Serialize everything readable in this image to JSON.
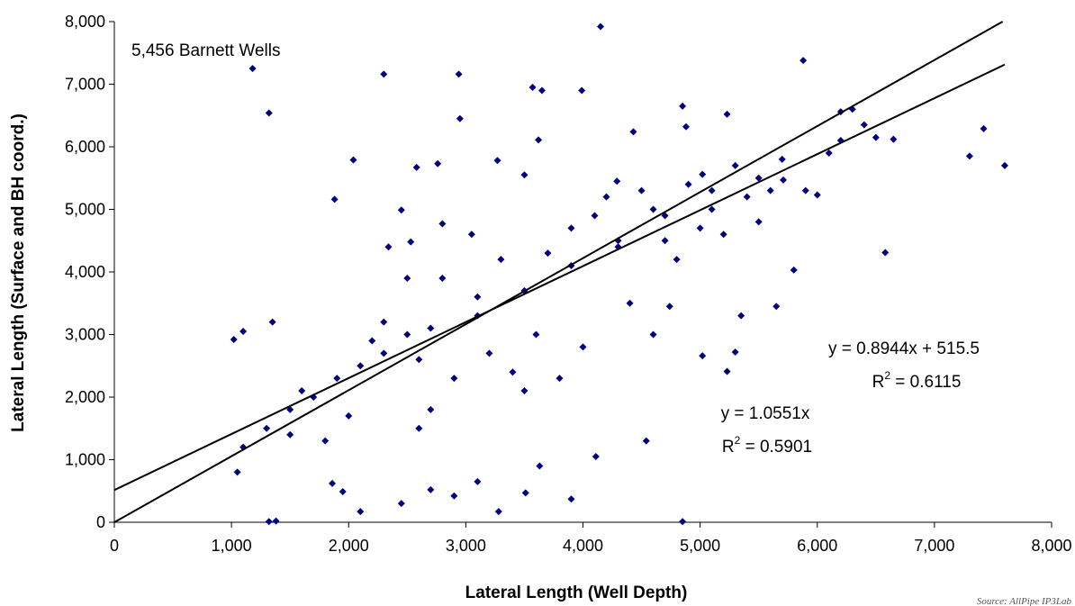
{
  "chart_data": {
    "type": "scatter",
    "xlabel": "Lateral Length (Well Depth)",
    "ylabel": "Lateral Length (Surface and BH coord.)",
    "xlim": [
      0,
      8000
    ],
    "ylim": [
      0,
      8000
    ],
    "x_ticks": [
      "0",
      "1,000",
      "2,000",
      "3,000",
      "4,000",
      "5,000",
      "6,000",
      "7,000",
      "8,000"
    ],
    "y_ticks": [
      "0",
      "1,000",
      "2,000",
      "3,000",
      "4,000",
      "5,000",
      "6,000",
      "7,000",
      "8,000"
    ],
    "grid": false,
    "marker": "diamond",
    "point_color": "#000080",
    "well_count_label": "5,456 Barnett Wells",
    "source_note": "Source: AllPipe IP3Lab",
    "trendlines": [
      {
        "slope": 0.8944,
        "intercept": 515.5,
        "x_range": [
          0,
          7600
        ],
        "equation": "y = 0.8944x + 515.5",
        "r2_label": "R",
        "r2_exp": "2",
        "r2_value": " = 0.6115"
      },
      {
        "slope": 1.0551,
        "intercept": 0,
        "x_range": [
          0,
          7600
        ],
        "equation": "y = 1.0551x",
        "r2_label": "R",
        "r2_exp": "2",
        "r2_value": " = 0.5901"
      }
    ],
    "points": [
      [
        4150,
        7920
      ],
      [
        1180,
        7250
      ],
      [
        2300,
        7160
      ],
      [
        2940,
        7160
      ],
      [
        5880,
        7380
      ],
      [
        1320,
        6540
      ],
      [
        2950,
        6450
      ],
      [
        3570,
        6950
      ],
      [
        3650,
        6900
      ],
      [
        3990,
        6900
      ],
      [
        4850,
        6650
      ],
      [
        4880,
        6320
      ],
      [
        5230,
        6520
      ],
      [
        4430,
        6240
      ],
      [
        3620,
        6110
      ],
      [
        7420,
        6290
      ],
      [
        7300,
        5850
      ],
      [
        7600,
        5700
      ],
      [
        6650,
        6120
      ],
      [
        6200,
        6560
      ],
      [
        6300,
        6600
      ],
      [
        6400,
        6350
      ],
      [
        6500,
        6150
      ],
      [
        6000,
        5230
      ],
      [
        6580,
        4310
      ],
      [
        2040,
        5790
      ],
      [
        1880,
        5160
      ],
      [
        2580,
        5670
      ],
      [
        2760,
        5730
      ],
      [
        3270,
        5780
      ],
      [
        3500,
        5550
      ],
      [
        4290,
        5450
      ],
      [
        5020,
        5560
      ],
      [
        5710,
        5470
      ],
      [
        5900,
        5300
      ],
      [
        4110,
        1050
      ],
      [
        4540,
        1300
      ],
      [
        3630,
        900
      ],
      [
        3280,
        170
      ],
      [
        3900,
        370
      ],
      [
        3510,
        470
      ],
      [
        2100,
        170
      ],
      [
        2450,
        300
      ],
      [
        1320,
        10
      ],
      [
        1380,
        20
      ],
      [
        4850,
        10
      ],
      [
        2700,
        520
      ],
      [
        2900,
        420
      ],
      [
        3100,
        650
      ],
      [
        1860,
        620
      ],
      [
        1950,
        490
      ],
      [
        1050,
        800
      ],
      [
        1020,
        2920
      ],
      [
        1100,
        3050
      ],
      [
        1350,
        3200
      ],
      [
        2340,
        4400
      ],
      [
        2530,
        4480
      ],
      [
        2800,
        4770
      ],
      [
        2450,
        4990
      ],
      [
        5230,
        2410
      ],
      [
        5300,
        2720
      ],
      [
        5020,
        2660
      ],
      [
        5350,
        3300
      ],
      [
        5650,
        3450
      ],
      [
        5800,
        4030
      ],
      [
        4740,
        3450
      ],
      [
        4600,
        3000
      ],
      [
        2700,
        1800
      ],
      [
        2600,
        1500
      ],
      [
        3500,
        2100
      ],
      [
        1800,
        1300
      ],
      [
        2500,
        3900
      ],
      [
        3050,
        4600
      ],
      [
        4200,
        5200
      ],
      [
        4600,
        5000
      ],
      [
        5000,
        4700
      ],
      [
        5400,
        5200
      ],
      [
        5500,
        4800
      ],
      [
        2200,
        2900
      ],
      [
        2800,
        3900
      ],
      [
        4800,
        4200
      ],
      [
        5100,
        5000
      ],
      [
        3400,
        2400
      ],
      [
        3600,
        3000
      ],
      [
        4000,
        2800
      ],
      [
        3800,
        2300
      ],
      [
        4400,
        3500
      ],
      [
        4300,
        4400
      ],
      [
        2000,
        1700
      ],
      [
        1600,
        2100
      ],
      [
        1500,
        1800
      ],
      [
        2300,
        3200
      ],
      [
        3300,
        4200
      ],
      [
        3200,
        2700
      ],
      [
        2900,
        2300
      ],
      [
        2600,
        2600
      ],
      [
        3900,
        4700
      ],
      [
        4700,
        4500
      ],
      [
        5200,
        4600
      ],
      [
        5600,
        5300
      ],
      [
        5700,
        5800
      ],
      [
        5300,
        5700
      ],
      [
        4900,
        5400
      ],
      [
        4500,
        5300
      ],
      [
        4100,
        4900
      ],
      [
        3700,
        4300
      ],
      [
        3100,
        3600
      ],
      [
        2500,
        3000
      ],
      [
        2100,
        2500
      ],
      [
        1700,
        2000
      ],
      [
        1300,
        1500
      ],
      [
        1100,
        1200
      ],
      [
        1500,
        1400
      ],
      [
        1900,
        2300
      ],
      [
        2300,
        2700
      ],
      [
        2700,
        3100
      ],
      [
        3100,
        3300
      ],
      [
        3500,
        3700
      ],
      [
        3900,
        4100
      ],
      [
        4300,
        4500
      ],
      [
        4700,
        4900
      ],
      [
        5100,
        5300
      ],
      [
        5500,
        5500
      ],
      [
        6100,
        5900
      ],
      [
        6200,
        6100
      ]
    ]
  }
}
